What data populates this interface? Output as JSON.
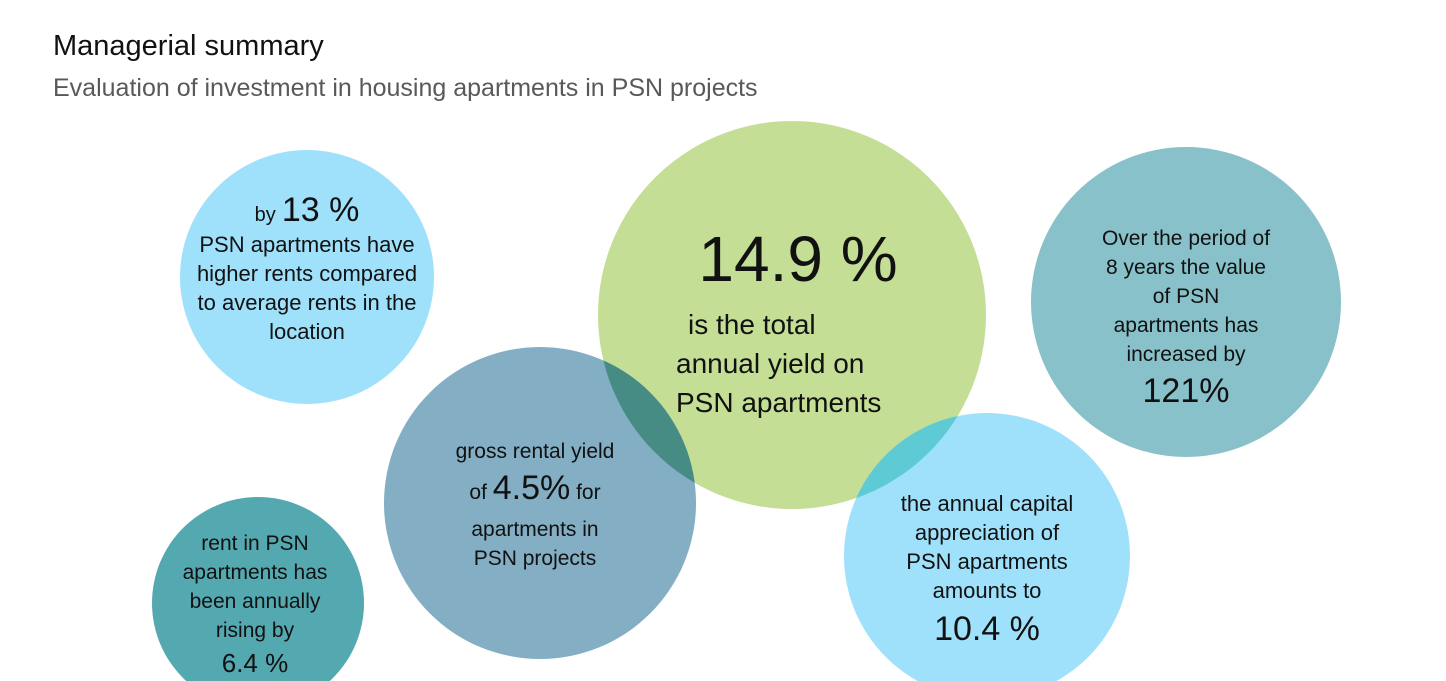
{
  "header": {
    "title": "Managerial summary",
    "subtitle": "Evaluation of investment in housing apartments in PSN projects"
  },
  "colors": {
    "light_blue": "#9fe1fb",
    "green": "#c4de95",
    "teal": "#88c1c9",
    "steel_blue": "#6d9fba",
    "dark_teal": "#54a8af",
    "green_overlap": "#468b84",
    "cyan_overlap": "#5ecad3"
  },
  "bubbles": {
    "rents_higher": {
      "prefix": "by",
      "value": "13 %",
      "lines": [
        "PSN apartments have",
        "higher rents compared",
        "to average rents in the",
        "location"
      ]
    },
    "total_yield": {
      "value": "14.9 %",
      "lines": [
        "is the total",
        "annual yield on",
        "PSN apartments"
      ]
    },
    "value_increase": {
      "lines": [
        "Over the period of",
        "8 years the value",
        "of PSN",
        "apartments has",
        "increased by"
      ],
      "value": "121%"
    },
    "gross_yield": {
      "line1": "gross rental yield",
      "prefix": "of",
      "value": "4.5%",
      "suffix": "for",
      "lines": [
        "apartments in",
        "PSN projects"
      ]
    },
    "capital_appreciation": {
      "lines": [
        "the annual capital",
        "appreciation of",
        "PSN apartments",
        "amounts to"
      ],
      "value": "10.4 %"
    },
    "rent_rising": {
      "lines": [
        "rent in PSN",
        "apartments has",
        "been annually",
        "rising by"
      ],
      "value": "6.4 %"
    }
  }
}
